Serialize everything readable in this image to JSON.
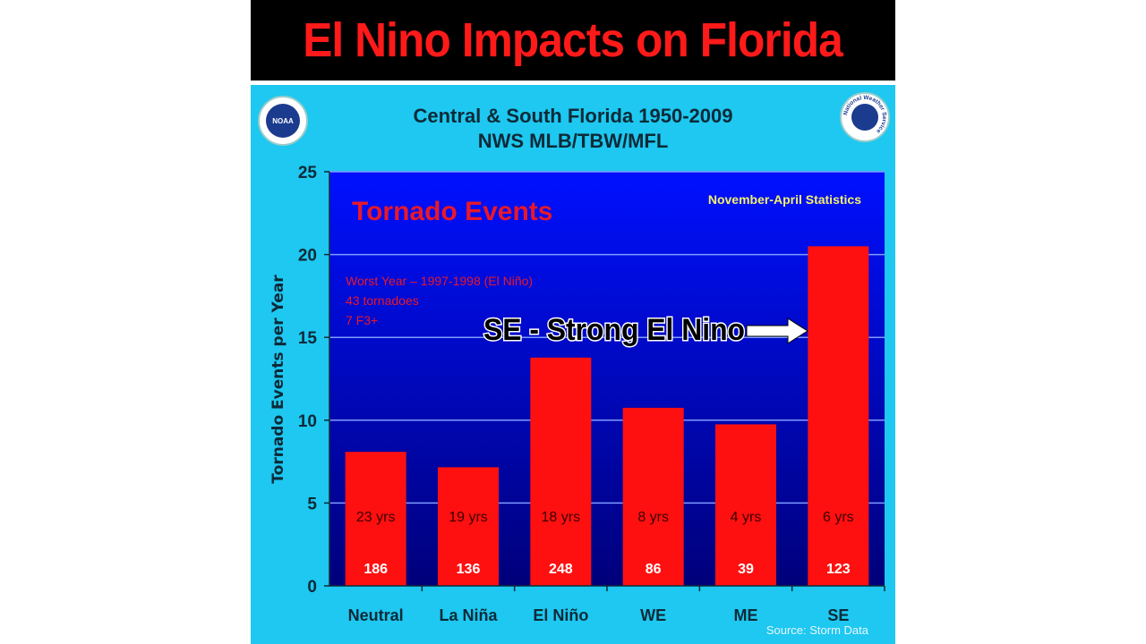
{
  "banner": {
    "title": "El Nino Impacts on Florida"
  },
  "header": {
    "title_line1": "Central & South Florida  1950-2009",
    "title_line2": "NWS MLB/TBW/MFL",
    "left_logo": "NOAA",
    "right_logo": "National Weather Service"
  },
  "chart_data": {
    "type": "bar",
    "title": "Tornado Events",
    "subtitle": "November-April Statistics",
    "ylabel": "Tornado Events per Year",
    "xlabel": "",
    "ylim": [
      0,
      25
    ],
    "yticks": [
      "0",
      "5",
      "10",
      "15",
      "20",
      "25"
    ],
    "grid": true,
    "categories": [
      "Neutral",
      "La Niña",
      "El Niño",
      "WE",
      "ME",
      "SE"
    ],
    "values": [
      8.09,
      7.16,
      13.78,
      10.75,
      9.75,
      20.5
    ],
    "years_labels": [
      "23 yrs",
      "19 yrs",
      "18 yrs",
      "8 yrs",
      "4 yrs",
      "6 yrs"
    ],
    "total_labels": [
      "186",
      "136",
      "248",
      "86",
      "39",
      "123"
    ],
    "notes": [
      "Worst Year – 1997-1998 (El Niño)",
      "43 tornadoes",
      "7 F3+"
    ],
    "annotation": "SE - Strong El Nino",
    "source": "Source: Storm Data",
    "colors": {
      "bar": "#ff1010",
      "plot_top": "#0010ff",
      "plot_bottom": "#00007a",
      "background": "#1ec8f0",
      "title": "#e8182a",
      "subtitle": "#f4f06a"
    }
  }
}
